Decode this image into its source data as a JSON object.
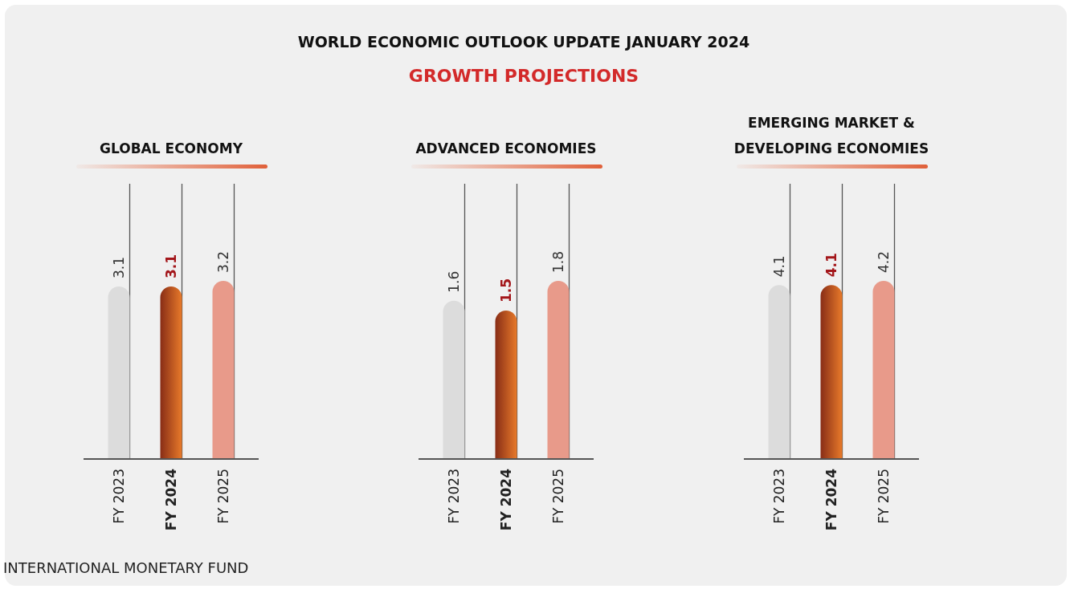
{
  "chart_data": [
    {
      "type": "other",
      "title": "WORLD ECONOMIC OUTLOOK UPDATE JANUARY 2024",
      "subtitle": "GROWTH PROJECTIONS",
      "annotations": [
        "INTERNATIONAL MONETARY FUND"
      ]
    },
    {
      "type": "bar",
      "title": "GLOBAL ECONOMY",
      "categories": [
        "FY 2023",
        "FY 2024",
        "FY 2025"
      ],
      "values": [
        3.1,
        3.1,
        3.2
      ],
      "colors": [
        "#dcdcdc",
        "#c2401f",
        "#e89a8a"
      ],
      "data_labels": true
    },
    {
      "type": "bar",
      "title": "ADVANCED ECONOMIES",
      "categories": [
        "FY 2023",
        "FY 2024",
        "FY 2025"
      ],
      "values": [
        1.6,
        1.5,
        1.8
      ],
      "colors": [
        "#dcdcdc",
        "#c2401f",
        "#e89a8a"
      ],
      "data_labels": true
    },
    {
      "type": "bar",
      "title": "EMERGING MARKET & DEVELOPING ECONOMIES",
      "categories": [
        "FY 2023",
        "FY 2024",
        "FY 2025"
      ],
      "values": [
        4.1,
        4.1,
        4.2
      ],
      "colors": [
        "#dcdcdc",
        "#c2401f",
        "#e89a8a"
      ],
      "data_labels": true
    }
  ]
}
